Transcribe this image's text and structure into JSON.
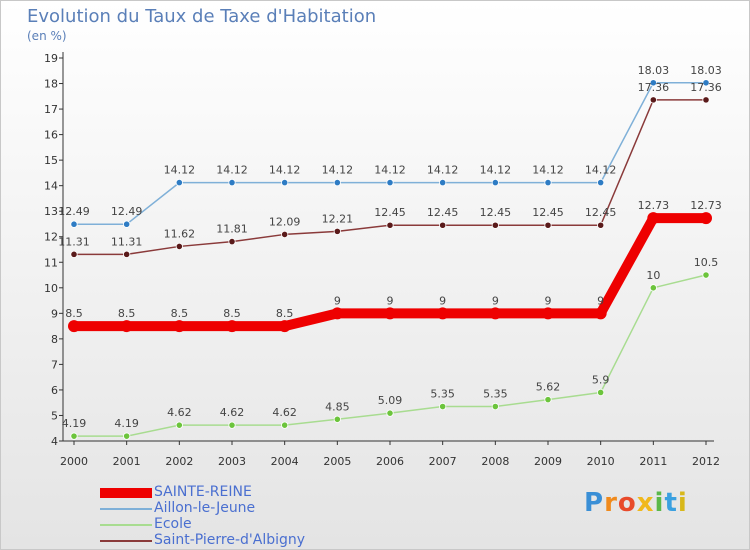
{
  "title": "Evolution du Taux de Taxe d'Habitation",
  "subtitle": "(en %)",
  "logo": [
    "P",
    "r",
    "o",
    "x",
    "i",
    "t",
    "i"
  ],
  "chart_data": {
    "type": "line",
    "title": "Evolution du Taux de Taxe d'Habitation",
    "ylabel": "(en %)",
    "x": [
      "2000",
      "2001",
      "2002",
      "2003",
      "2004",
      "2005",
      "2006",
      "2007",
      "2008",
      "2009",
      "2010",
      "2011",
      "2012"
    ],
    "ylim": [
      4,
      19
    ],
    "yticks": [
      4,
      5,
      6,
      7,
      8,
      9,
      10,
      11,
      12,
      13,
      14,
      15,
      16,
      17,
      18,
      19
    ],
    "grid": false,
    "legend_position": "bottom-left",
    "series": [
      {
        "name": "SAINTE-REINE",
        "color": "#ee0000",
        "point_color": "#ee0000",
        "values": [
          8.5,
          8.5,
          8.5,
          8.5,
          8.5,
          9,
          9,
          9,
          9,
          9,
          9,
          12.73,
          12.73
        ],
        "labels": [
          "8.5",
          "8.5",
          "8.5",
          "8.5",
          "8.5",
          "9",
          "9",
          "9",
          "9",
          "9",
          "9",
          "12.73",
          "12.73"
        ]
      },
      {
        "name": "Aillon-le-Jeune",
        "color": "#7fb0d8",
        "point_color": "#2e7cc4",
        "values": [
          12.49,
          12.49,
          14.12,
          14.12,
          14.12,
          14.12,
          14.12,
          14.12,
          14.12,
          14.12,
          14.12,
          18.03,
          18.03
        ],
        "labels": [
          "12.49",
          "12.49",
          "14.12",
          "14.12",
          "14.12",
          "14.12",
          "14.12",
          "14.12",
          "14.12",
          "14.12",
          "14.12",
          "18.03",
          "18.03"
        ]
      },
      {
        "name": "Ecole",
        "color": "#a8dc90",
        "point_color": "#6cc43c",
        "values": [
          4.19,
          4.19,
          4.62,
          4.62,
          4.62,
          4.85,
          5.09,
          5.35,
          5.35,
          5.62,
          5.9,
          10,
          10.5
        ],
        "labels": [
          "4.19",
          "4.19",
          "4.62",
          "4.62",
          "4.62",
          "4.85",
          "5.09",
          "5.35",
          "5.35",
          "5.62",
          "5.9",
          "10",
          "10.5"
        ]
      },
      {
        "name": "Saint-Pierre-d'Albigny",
        "color": "#8a3a3a",
        "point_color": "#5a1a1a",
        "values": [
          11.31,
          11.31,
          11.62,
          11.81,
          12.09,
          12.21,
          12.45,
          12.45,
          12.45,
          12.45,
          12.45,
          17.36,
          17.36
        ],
        "labels": [
          "11.31",
          "11.31",
          "11.62",
          "11.81",
          "12.09",
          "12.21",
          "12.45",
          "12.45",
          "12.45",
          "12.45",
          "12.45",
          "17.36",
          "17.36"
        ]
      }
    ]
  }
}
